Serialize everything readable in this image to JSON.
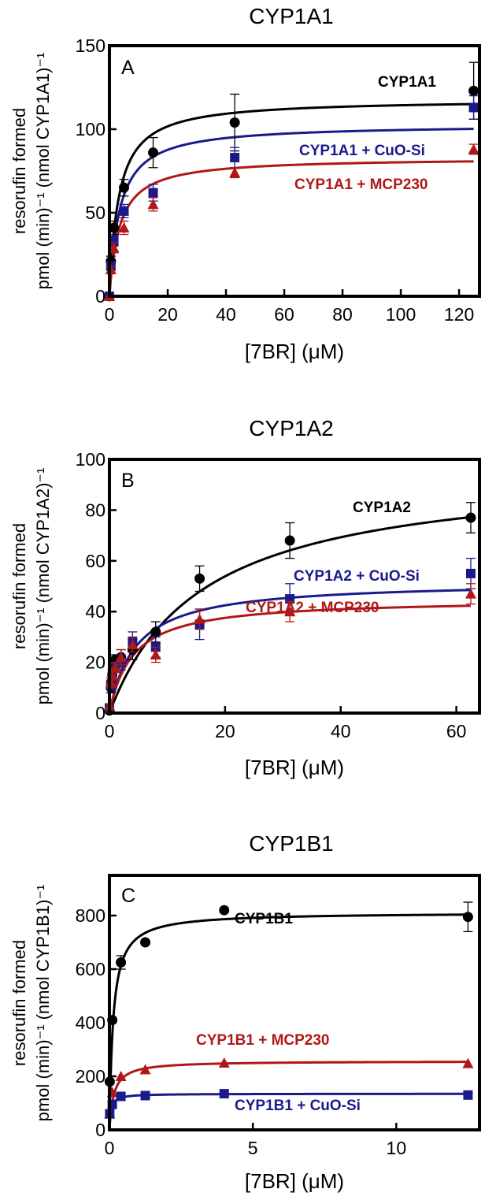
{
  "colors": {
    "black": "#000000",
    "blue": "#1a1a8c",
    "red": "#b01818"
  },
  "chart_data": [
    {
      "type": "scatter",
      "title": "CYP1A1",
      "panel_letter": "A",
      "xlabel": "[7BR] (μM)",
      "ylabel_top": "resorufin formed",
      "ylabel_bottom": "pmol (min)⁻¹ (nmol CYP1A1)⁻¹",
      "xlim": [
        0,
        127
      ],
      "ylim": [
        0,
        150
      ],
      "xticks": [
        "0",
        "20",
        "40",
        "60",
        "80",
        "100",
        "120"
      ],
      "yticks": [
        "0",
        "50",
        "100",
        "150"
      ],
      "series": [
        {
          "name": "CYP1A1",
          "color": "#000000",
          "marker": "circle",
          "x": [
            0,
            0.5,
            1.5,
            5,
            15,
            43,
            125
          ],
          "y": [
            0,
            21,
            41,
            65,
            86,
            104,
            123
          ],
          "err": [
            0,
            3,
            4,
            5,
            9,
            17,
            17
          ],
          "fit": {
            "vmax": 118,
            "km": 3.2
          }
        },
        {
          "name": "CYP1A1 + CuO-Si",
          "color": "#1a1a8c",
          "marker": "square",
          "x": [
            0,
            0.5,
            1.5,
            5,
            15,
            43,
            125
          ],
          "y": [
            0,
            18,
            33,
            51,
            62,
            83,
            113
          ],
          "err": [
            0,
            2,
            3,
            4,
            5,
            6,
            7
          ],
          "fit": {
            "vmax": 103,
            "km": 3.5
          }
        },
        {
          "name": "CYP1A1 + MCP230",
          "color": "#b01818",
          "marker": "triangle",
          "x": [
            0,
            0.5,
            1.5,
            5,
            15,
            43,
            125
          ],
          "y": [
            0,
            16,
            29,
            41,
            55,
            74,
            88
          ],
          "err": [
            0,
            2,
            3,
            4,
            4,
            3,
            3
          ],
          "fit": {
            "vmax": 83,
            "km": 3.5
          }
        }
      ],
      "labels": [
        "CYP1A1",
        "CYP1A1 + CuO-Si",
        "CYP1A1 + MCP230"
      ]
    },
    {
      "type": "scatter",
      "title": "CYP1A2",
      "panel_letter": "B",
      "xlabel": "[7BR] (μM)",
      "ylabel_top": "resorufin formed",
      "ylabel_bottom": "pmol (min)⁻¹ (nmol CYP1A2)⁻¹",
      "xlim": [
        0,
        64
      ],
      "ylim": [
        0,
        100
      ],
      "xticks": [
        "0",
        "20",
        "40",
        "60"
      ],
      "yticks": [
        "0",
        "20",
        "40",
        "60",
        "80",
        "100"
      ],
      "series": [
        {
          "name": "CYP1A2",
          "color": "#000000",
          "marker": "circle",
          "x": [
            0,
            0.25,
            0.5,
            1,
            2,
            4,
            8,
            15.6,
            31.2,
            62.5
          ],
          "y": [
            1,
            10,
            15,
            21,
            22,
            25,
            32,
            53,
            68,
            77
          ],
          "err": [
            0,
            2,
            2,
            2,
            3,
            4,
            4,
            5,
            7,
            6
          ],
          "fit": {
            "vmax": 97,
            "km": 16
          }
        },
        {
          "name": "CYP1A2 + CuO-Si",
          "color": "#1a1a8c",
          "marker": "square",
          "x": [
            0,
            0.25,
            0.5,
            1,
            2,
            4,
            8,
            15.6,
            31.2,
            62.5
          ],
          "y": [
            2,
            11,
            14,
            18,
            20,
            28,
            26,
            35,
            45,
            55
          ],
          "err": [
            0,
            2,
            2,
            2,
            3,
            4,
            4,
            6,
            6,
            6
          ],
          "fit": {
            "vmax": 52,
            "km": 4.5
          }
        },
        {
          "name": "CYP1A2 + MCP230",
          "color": "#b01818",
          "marker": "triangle",
          "x": [
            0,
            0.25,
            0.5,
            1,
            2,
            4,
            8,
            15.6,
            31.2,
            62.5
          ],
          "y": [
            3,
            12,
            15,
            18,
            22,
            27,
            23,
            37,
            40,
            47
          ],
          "err": [
            0,
            2,
            2,
            2,
            3,
            3,
            3,
            4,
            4,
            4
          ],
          "fit": {
            "vmax": 45,
            "km": 4.0
          }
        }
      ],
      "labels": [
        "CYP1A2",
        "CYP1A2 + CuO-Si",
        "CYP1A2 + MCP230"
      ]
    },
    {
      "type": "scatter",
      "title": "CYP1B1",
      "panel_letter": "C",
      "xlabel": "[7BR] (μM)",
      "ylabel_top": "resorufin formed",
      "ylabel_bottom": "pmol (min)⁻¹ (nmol CYP1B1)⁻¹",
      "xlim": [
        0,
        12.9
      ],
      "ylim": [
        0,
        950
      ],
      "xticks": [
        "0",
        "5",
        "10"
      ],
      "yticks": [
        "0",
        "200",
        "400",
        "600",
        "800"
      ],
      "series": [
        {
          "name": "CYP1B1",
          "color": "#000000",
          "marker": "circle",
          "x": [
            0.01,
            0.1,
            0.4,
            1.25,
            4,
            12.5
          ],
          "y": [
            180,
            410,
            625,
            700,
            820,
            795
          ],
          "err": [
            0,
            0,
            25,
            0,
            0,
            55
          ],
          "fit": {
            "vmax": 812,
            "km": 0.13
          }
        },
        {
          "name": "CYP1B1 + MCP230",
          "color": "#b01818",
          "marker": "triangle",
          "x": [
            0.01,
            0.1,
            0.4,
            1.25,
            4,
            12.5
          ],
          "y": [
            60,
            140,
            200,
            225,
            250,
            248
          ],
          "err": [
            0,
            0,
            0,
            0,
            0,
            0
          ],
          "fit": {
            "vmax": 257,
            "km": 0.15
          }
        },
        {
          "name": "CYP1B1 + CuO-Si",
          "color": "#1a1a8c",
          "marker": "square",
          "x": [
            0.01,
            0.1,
            0.4,
            1.25,
            4,
            12.5
          ],
          "y": [
            60,
            95,
            125,
            128,
            135,
            130
          ],
          "err": [
            0,
            0,
            0,
            0,
            0,
            0
          ],
          "fit": {
            "vmax": 135,
            "km": 0.05
          }
        }
      ],
      "labels": [
        "CYP1B1",
        "CYP1B1 + MCP230",
        "CYP1B1 + CuO-Si"
      ]
    }
  ]
}
